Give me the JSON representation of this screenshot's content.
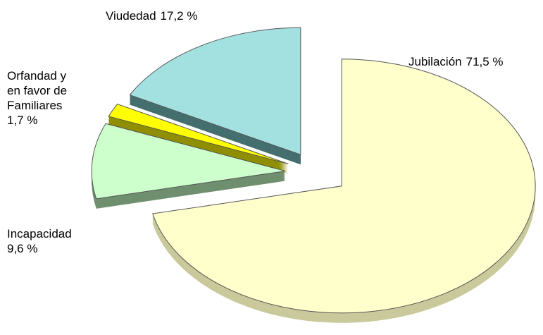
{
  "chart_data": {
    "type": "pie",
    "categories": [
      "Jubilación",
      "Incapacidad",
      "Orfandad y en favor de Familiares",
      "Viudedad"
    ],
    "values": [
      71.5,
      9.6,
      1.7,
      17.2
    ],
    "value_labels": [
      "71,5 %",
      "9,6 %",
      "1,7 %",
      "17,2 %"
    ],
    "colors": [
      "#ffffcc",
      "#ccffcc",
      "#ffff00",
      "#a3e1e1"
    ],
    "side_colors": [
      "#c9c99b",
      "#6f8f6f",
      "#8f8f00",
      "#456f6f"
    ]
  }
}
